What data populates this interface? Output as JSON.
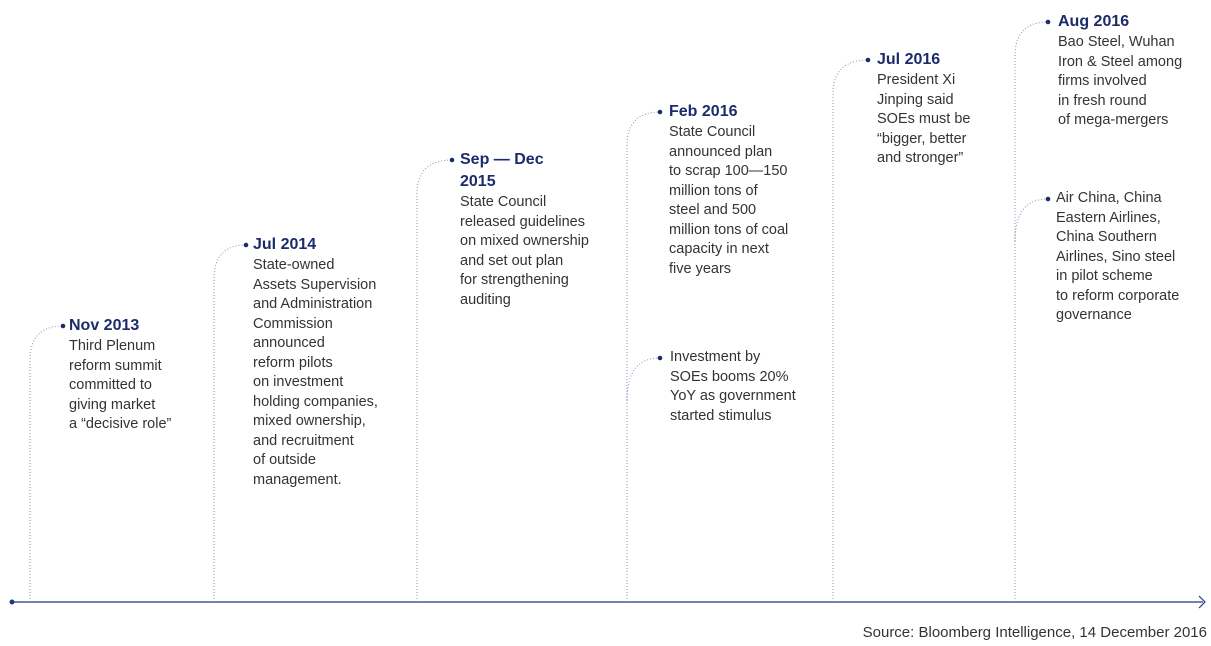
{
  "events": [
    {
      "date": "Nov 2013",
      "lines": [
        "Third Plenum",
        "reform summit",
        "committed to",
        "giving market",
        "a “decisive role”"
      ]
    },
    {
      "date": "Jul 2014",
      "lines": [
        "State-owned",
        "Assets Supervision",
        "and Administration",
        "Commission",
        "announced",
        "reform pilots",
        "on investment",
        "holding companies,",
        "mixed ownership,",
        "and recruitment",
        "of outside",
        "management."
      ]
    },
    {
      "date": "Sep — Dec 2015",
      "lines": [
        "State Council",
        "released guidelines",
        "on mixed ownership",
        "and set out plan",
        "for strengthening",
        "auditing"
      ]
    },
    {
      "date": "Feb 2016",
      "lines": [
        "State Council",
        "announced plan",
        "to scrap 100—150",
        "million tons of",
        "steel and 500",
        "million tons of coal",
        "capacity in next",
        "five years"
      ]
    },
    {
      "lines": [
        "Investment by",
        "SOEs booms 20%",
        "YoY as government",
        "started stimulus"
      ]
    },
    {
      "date": "Jul 2016",
      "lines": [
        "President Xi",
        "Jinping said",
        "SOEs must be",
        "“bigger, better",
        "and stronger”"
      ]
    },
    {
      "date": "Aug 2016",
      "lines": [
        "Bao Steel, Wuhan",
        "Iron & Steel among",
        "firms involved",
        "in fresh round",
        "of mega-mergers"
      ]
    },
    {
      "lines": [
        "Air China, China",
        "Eastern Airlines,",
        "China Southern",
        "Airlines, Sino steel",
        "in pilot scheme",
        "to reform corporate",
        "governance"
      ]
    }
  ],
  "source": "Source: Bloomberg Intelligence, 14 December 2016"
}
